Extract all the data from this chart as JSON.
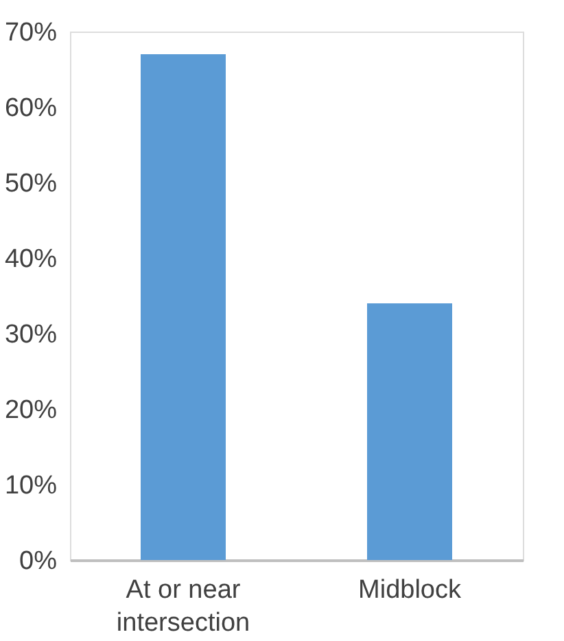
{
  "chart_data": {
    "type": "bar",
    "categories": [
      "At or near intersection",
      "Midblock"
    ],
    "values": [
      67,
      34
    ],
    "color": "#5b9bd5",
    "ylim": [
      0,
      70
    ],
    "yticks": [
      {
        "value": 0,
        "label": "0%"
      },
      {
        "value": 10,
        "label": "10%"
      },
      {
        "value": 20,
        "label": "20%"
      },
      {
        "value": 30,
        "label": "30%"
      },
      {
        "value": 40,
        "label": "40%"
      },
      {
        "value": 50,
        "label": "50%"
      },
      {
        "value": 60,
        "label": "60%"
      },
      {
        "value": 70,
        "label": "70%"
      }
    ],
    "grid": false
  }
}
